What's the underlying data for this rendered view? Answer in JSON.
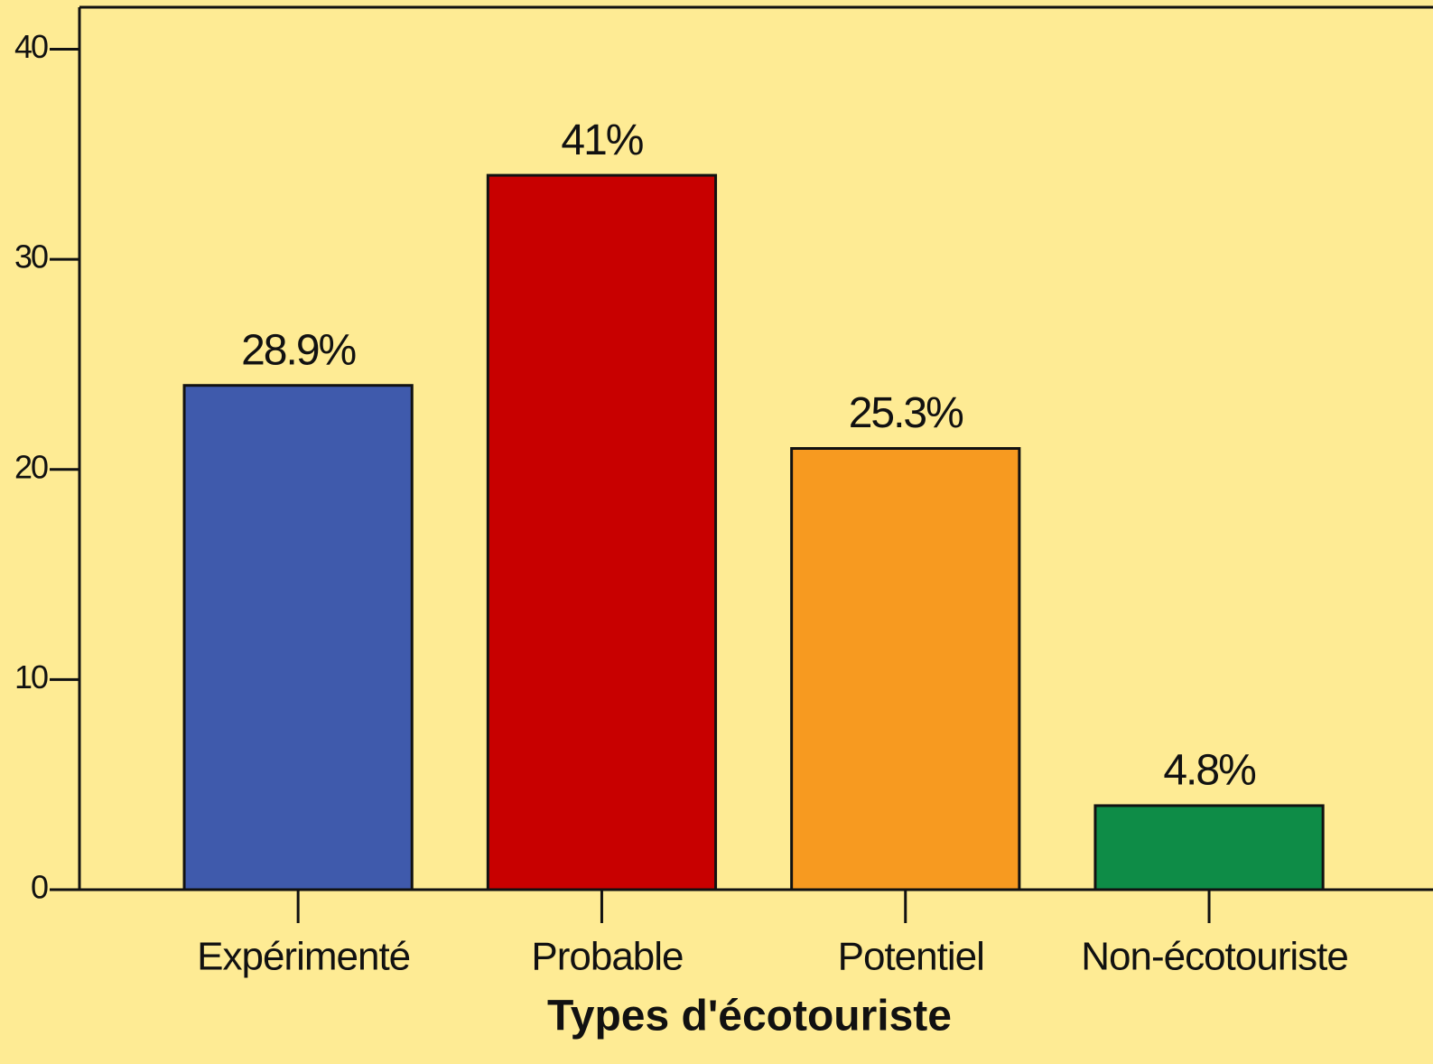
{
  "chart_data": {
    "type": "bar",
    "x_label": "Types d'écotouriste",
    "categories": [
      "Expérimenté",
      "Probable",
      "Potentiel",
      "Non-écotouriste"
    ],
    "values": [
      24,
      34,
      21,
      4
    ],
    "value_labels": [
      "28.9%",
      "41%",
      "25.3%",
      "4.8%"
    ],
    "colors": [
      "#3f5aac",
      "#c80000",
      "#f79a20",
      "#0e8c47"
    ],
    "ylim": [
      0,
      42
    ],
    "yticks": [
      0,
      10,
      20,
      30,
      40
    ],
    "grid": false
  }
}
